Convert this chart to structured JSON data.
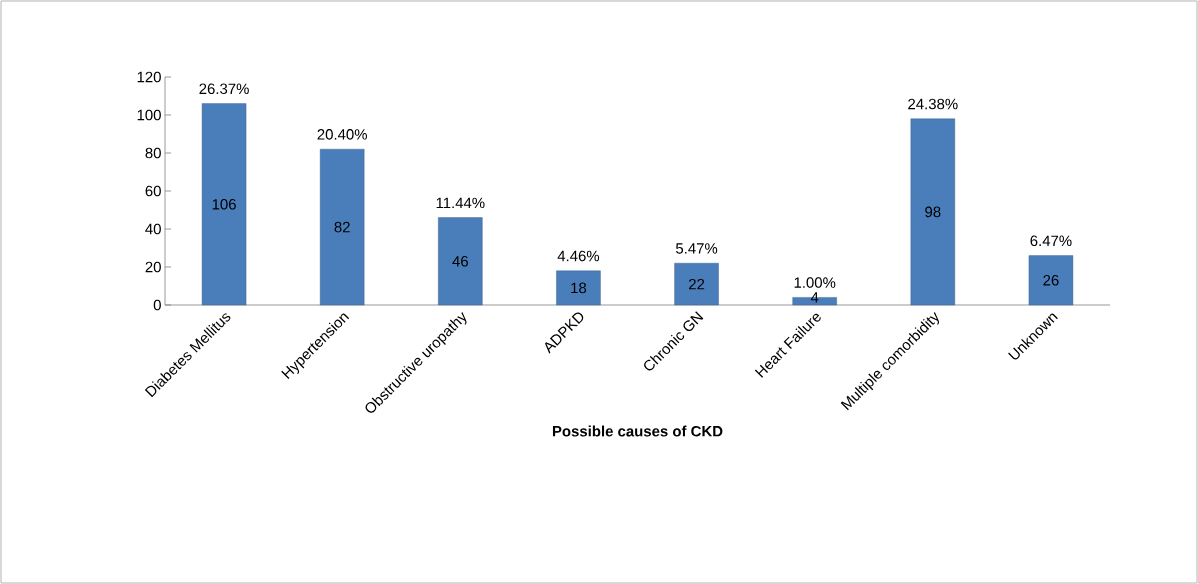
{
  "chart_data": {
    "type": "bar",
    "xlabel": "Possible causes of CKD",
    "categories": [
      "Diabetes Mellitus",
      "Hypertension",
      "Obstructive uropathy",
      "ADPKD",
      "Chronic GN",
      "Heart Failure",
      "Multiple comorbidity",
      "Unknown"
    ],
    "values": [
      106,
      82,
      46,
      18,
      22,
      4,
      98,
      26
    ],
    "color": "#4a7ebb",
    "data_labels": true,
    "ylim": [
      0,
      120
    ],
    "yticks": [
      0,
      20,
      40,
      60,
      80,
      100,
      120
    ],
    "annotations": [
      {
        "text": "26.37%",
        "x": "Diabetes Mellitus",
        "y": 106
      },
      {
        "text": "20.40%",
        "x": "Hypertension",
        "y": 82
      },
      {
        "text": "11.44%",
        "x": "Obstructive uropathy",
        "y": 46
      },
      {
        "text": "4.46%",
        "x": "ADPKD",
        "y": 18
      },
      {
        "text": "5.47%",
        "x": "Chronic GN",
        "y": 22
      },
      {
        "text": "1.00%",
        "x": "Heart Failure",
        "y": 4
      },
      {
        "text": "24.38%",
        "x": "Multiple comorbidity",
        "y": 98
      },
      {
        "text": "6.47%",
        "x": "Unknown",
        "y": 26
      }
    ]
  }
}
